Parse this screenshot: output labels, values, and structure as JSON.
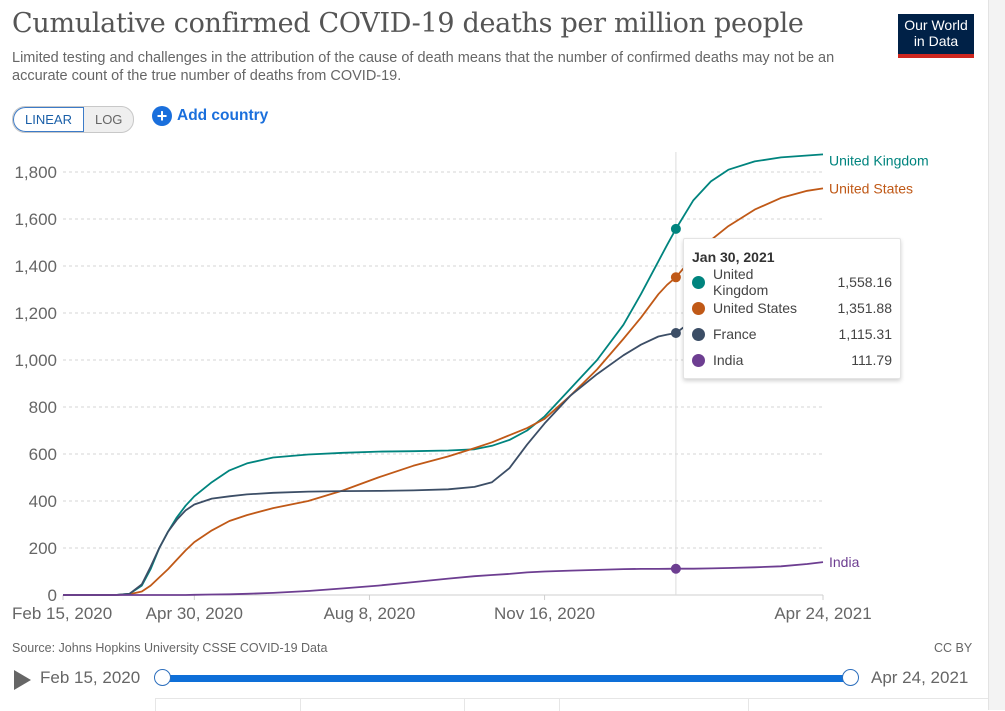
{
  "header": {
    "title": "Cumulative confirmed COVID-19 deaths per million people",
    "subtitle": "Limited testing and challenges in the attribution of the cause of death means that the number of confirmed deaths may not be an accurate count of the true number of deaths from COVID-19.",
    "logo_line1": "Our World",
    "logo_line2": "in Data"
  },
  "controls": {
    "scale_options": [
      "LINEAR",
      "LOG"
    ],
    "scale_selected": "LINEAR",
    "add_country_label": "Add country",
    "add_icon": "plus-circle-icon"
  },
  "tooltip": {
    "date": "Jan 30, 2021",
    "rows": [
      {
        "name": "United Kingdom",
        "value": "1,558.16",
        "color": "#00847e"
      },
      {
        "name": "United States",
        "value": "1,351.88",
        "color": "#c05917"
      },
      {
        "name": "France",
        "value": "1,115.31",
        "color": "#3c4e66"
      },
      {
        "name": "India",
        "value": "111.79",
        "color": "#6d3e91"
      }
    ]
  },
  "footer": {
    "source": "Source: Johns Hopkins University CSSE COVID-19 Data",
    "license": "CC BY"
  },
  "timeline": {
    "start_label": "Feb 15, 2020",
    "end_label": "Apr 24, 2021",
    "play_icon": "play-icon",
    "range_start_fraction": 0,
    "range_end_fraction": 1
  },
  "chart_data": {
    "type": "line",
    "title": "Cumulative confirmed COVID-19 deaths per million people",
    "xlabel": "",
    "ylabel": "",
    "x_unit": "days since Feb 15, 2020",
    "x_range": [
      0,
      434
    ],
    "x_ticks": [
      {
        "day": 0,
        "label": "Feb 15, 2020"
      },
      {
        "day": 75,
        "label": "Apr 30, 2020"
      },
      {
        "day": 175,
        "label": "Aug 8, 2020"
      },
      {
        "day": 275,
        "label": "Nov 16, 2020"
      },
      {
        "day": 434,
        "label": "Apr 24, 2021"
      }
    ],
    "ylim": [
      0,
      1800
    ],
    "y_ticks": [
      {
        "value": 0,
        "label": "0"
      },
      {
        "value": 200,
        "label": "200"
      },
      {
        "value": 400,
        "label": "400"
      },
      {
        "value": 600,
        "label": "600"
      },
      {
        "value": 800,
        "label": "800"
      },
      {
        "value": 1000,
        "label": "1,000"
      },
      {
        "value": 1200,
        "label": "1,200"
      },
      {
        "value": 1400,
        "label": "1,400"
      },
      {
        "value": 1600,
        "label": "1,600"
      },
      {
        "value": 1800,
        "label": "1,800"
      }
    ],
    "grid": true,
    "legend": "end-of-line labels (right)",
    "hover_day": 350,
    "x": [
      0,
      30,
      38,
      45,
      50,
      55,
      60,
      65,
      70,
      75,
      85,
      95,
      105,
      120,
      140,
      160,
      180,
      200,
      220,
      235,
      245,
      255,
      265,
      275,
      290,
      305,
      320,
      330,
      340,
      345,
      350,
      360,
      370,
      380,
      395,
      410,
      425,
      434
    ],
    "series": [
      {
        "name": "United Kingdom",
        "color": "#00847e",
        "values": [
          0,
          0,
          5,
          40,
          110,
          200,
          270,
          330,
          380,
          420,
          480,
          530,
          560,
          585,
          598,
          605,
          610,
          612,
          615,
          620,
          635,
          660,
          700,
          760,
          880,
          1000,
          1150,
          1280,
          1420,
          1490,
          1558,
          1680,
          1760,
          1810,
          1845,
          1862,
          1870,
          1875
        ]
      },
      {
        "name": "United States",
        "color": "#c05917",
        "values": [
          0,
          0,
          3,
          15,
          40,
          75,
          110,
          150,
          190,
          225,
          275,
          315,
          340,
          370,
          400,
          445,
          500,
          550,
          590,
          625,
          650,
          680,
          710,
          750,
          850,
          960,
          1090,
          1180,
          1280,
          1320,
          1352,
          1440,
          1510,
          1570,
          1640,
          1690,
          1720,
          1730
        ]
      },
      {
        "name": "France",
        "color": "#3c4e66",
        "values": [
          0,
          0,
          5,
          45,
          120,
          200,
          270,
          320,
          360,
          385,
          410,
          420,
          428,
          435,
          440,
          442,
          443,
          445,
          450,
          460,
          480,
          540,
          640,
          730,
          850,
          940,
          1020,
          1065,
          1100,
          1108,
          1115,
          1170,
          1230,
          1290,
          1370,
          1440,
          1490,
          1510
        ]
      },
      {
        "name": "India",
        "color": "#6d3e91",
        "values": [
          0,
          0,
          0,
          0,
          0,
          0,
          0,
          0,
          0,
          1,
          2,
          3,
          5,
          9,
          17,
          28,
          40,
          55,
          70,
          80,
          85,
          90,
          96,
          100,
          104,
          107,
          110,
          111,
          111,
          111.5,
          111.79,
          112,
          113,
          115,
          118,
          122,
          132,
          140
        ]
      }
    ]
  }
}
